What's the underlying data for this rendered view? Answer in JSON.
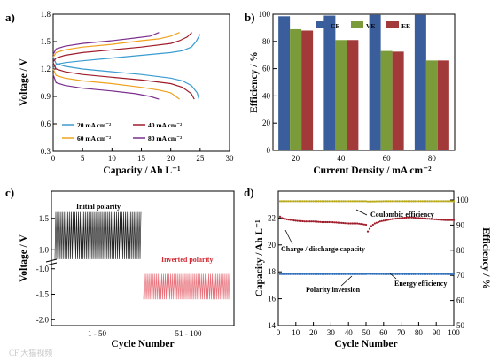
{
  "panels": {
    "a": "a)",
    "b": "b)",
    "c": "c)",
    "d": "d)"
  },
  "watermark": "CF 大猫视频",
  "colors": {
    "blue": "#3a5e9c",
    "green": "#7b9b3a",
    "red": "#a23a3a",
    "teal": "#3a9bd1",
    "darkred": "#a01c2a",
    "orange": "#f0a21c",
    "purple": "#7b2f8e",
    "pos": "#222222",
    "neg": "#e8707a",
    "ce": "#b9aa1c",
    "cap": "#a01c2a",
    "ee": "#2f6fba"
  },
  "chart_data": [
    {
      "id": "a",
      "type": "line",
      "xlabel": "Capacity / Ah L⁻¹",
      "ylabel": "Voltage / V",
      "xlim": [
        0,
        30
      ],
      "ylim": [
        0.3,
        1.8
      ],
      "xticks": [
        0,
        5,
        10,
        15,
        20,
        25,
        30
      ],
      "yticks": [
        0.3,
        0.6,
        0.9,
        1.2,
        1.5,
        1.8
      ],
      "legend_position": "bottom",
      "series": [
        {
          "name": "20 mA cm⁻²",
          "color": "#3a9bd1",
          "charge": {
            "x": [
              0,
              0.5,
              2,
              5,
              10,
              15,
              20,
              22,
              23.5,
              24.3,
              25.0
            ],
            "y": [
              1.21,
              1.25,
              1.27,
              1.29,
              1.32,
              1.35,
              1.38,
              1.4,
              1.44,
              1.5,
              1.58
            ]
          },
          "discharge": {
            "x": [
              0,
              0.5,
              2,
              5,
              10,
              15,
              20,
              22,
              23.5,
              24.5,
              24.8
            ],
            "y": [
              1.33,
              1.26,
              1.23,
              1.2,
              1.17,
              1.14,
              1.1,
              1.07,
              1.02,
              0.94,
              0.87
            ]
          }
        },
        {
          "name": "40 mA cm⁻²",
          "color": "#a01c2a",
          "charge": {
            "x": [
              0,
              0.5,
              2,
              5,
              10,
              15,
              20,
              21.5,
              22.8,
              23.6
            ],
            "y": [
              1.28,
              1.32,
              1.35,
              1.38,
              1.41,
              1.44,
              1.48,
              1.51,
              1.55,
              1.6
            ]
          },
          "discharge": {
            "x": [
              0,
              0.5,
              2,
              5,
              10,
              15,
              20,
              22,
              23.5,
              24.0
            ],
            "y": [
              1.27,
              1.2,
              1.17,
              1.14,
              1.11,
              1.08,
              1.04,
              1.0,
              0.93,
              0.87
            ]
          }
        },
        {
          "name": "60 mA cm⁻²",
          "color": "#f0a21c",
          "charge": {
            "x": [
              0,
              0.5,
              2,
              5,
              10,
              15,
              18,
              20,
              21.5
            ],
            "y": [
              1.33,
              1.38,
              1.41,
              1.44,
              1.47,
              1.51,
              1.53,
              1.56,
              1.6
            ]
          },
          "discharge": {
            "x": [
              0,
              0.5,
              2,
              5,
              10,
              15,
              18,
              20,
              21.5
            ],
            "y": [
              1.2,
              1.13,
              1.1,
              1.07,
              1.04,
              1.0,
              0.97,
              0.94,
              0.87
            ]
          }
        },
        {
          "name": "80 mA cm⁻²",
          "color": "#7b2f8e",
          "charge": {
            "x": [
              0,
              0.5,
              2,
              5,
              10,
              14,
              16.5,
              18.0
            ],
            "y": [
              1.36,
              1.42,
              1.45,
              1.48,
              1.51,
              1.54,
              1.56,
              1.6
            ]
          },
          "discharge": {
            "x": [
              0,
              0.5,
              2,
              5,
              10,
              14,
              16.5,
              18.0
            ],
            "y": [
              1.14,
              1.05,
              1.02,
              0.99,
              0.96,
              0.93,
              0.9,
              0.87
            ]
          }
        }
      ]
    },
    {
      "id": "b",
      "type": "bar",
      "xlabel": "Current Density / mA cm⁻²",
      "ylabel": "Efficiency / %",
      "categories": [
        "20",
        "40",
        "60",
        "80"
      ],
      "ylim": [
        0,
        100
      ],
      "yticks": [
        0,
        20,
        40,
        60,
        80,
        100
      ],
      "legend_position": "top",
      "series": [
        {
          "name": "CE",
          "color": "#3a5e9c",
          "values": [
            98.5,
            99,
            99.5,
            99.5
          ]
        },
        {
          "name": "VE",
          "color": "#7b9b3a",
          "values": [
            89,
            81,
            73,
            66
          ]
        },
        {
          "name": "EE",
          "color": "#a23a3a",
          "values": [
            88,
            81,
            72.5,
            66
          ]
        }
      ]
    },
    {
      "id": "c",
      "type": "line",
      "xlabel": "Cycle Number",
      "ylabel": "Voltage / V",
      "categories": [
        "1 - 50",
        "51 - 100"
      ],
      "yticks": [
        "1.5",
        "1.0",
        "-1.0",
        "-1.5",
        "-2.0"
      ],
      "annotations": [
        "Initial polarity",
        "Inverted polarity"
      ],
      "series": [
        {
          "name": "Initial polarity",
          "color": "#222222",
          "cycles": 50,
          "v_high": 1.6,
          "v_low": 0.85
        },
        {
          "name": "Inverted polarity",
          "color": "#e8707a",
          "cycles": 50,
          "v_high": -1.1,
          "v_low": -1.6
        }
      ]
    },
    {
      "id": "d",
      "type": "scatter",
      "xlabel": "Cycle Number",
      "ylabel_left": "Capacity / Ah L⁻¹",
      "ylabel_right": "Efficiency / %",
      "xlim": [
        0,
        100
      ],
      "ylim_left": [
        14,
        24
      ],
      "ylim_right": [
        50,
        100
      ],
      "xticks": [
        0,
        10,
        20,
        30,
        40,
        50,
        60,
        70,
        80,
        90,
        100
      ],
      "yticks_left": [
        14,
        16,
        18,
        20,
        22
      ],
      "yticks_right": [
        50,
        60,
        70,
        80,
        90,
        100
      ],
      "annotations": [
        "Coulombic efficiency",
        "Charge / discharge capacity",
        "Polarity inversion",
        "Energy efficiency"
      ],
      "series": [
        {
          "name": "Coulombic efficiency",
          "axis": "right",
          "color": "#b9aa1c",
          "x": [
            1,
            10,
            20,
            30,
            40,
            50,
            51,
            60,
            70,
            80,
            90,
            100
          ],
          "y": [
            99.5,
            99.5,
            99.5,
            99.5,
            99.5,
            99.5,
            99.4,
            99.5,
            99.5,
            99.5,
            99.5,
            99.5
          ]
        },
        {
          "name": "Charge / discharge capacity",
          "axis": "left",
          "color": "#a01c2a",
          "x": [
            1,
            2,
            5,
            10,
            15,
            20,
            25,
            30,
            35,
            40,
            45,
            50,
            51,
            52,
            53,
            55,
            58,
            62,
            66,
            70,
            75,
            80,
            85,
            90,
            95,
            100
          ],
          "y": [
            22.1,
            22.0,
            21.9,
            21.8,
            21.75,
            21.75,
            21.7,
            21.7,
            21.65,
            21.6,
            21.6,
            21.5,
            21.0,
            21.2,
            21.4,
            21.6,
            21.75,
            21.85,
            21.95,
            22.0,
            22.05,
            22.0,
            21.95,
            21.9,
            21.85,
            21.85
          ]
        },
        {
          "name": "Energy efficiency",
          "axis": "right",
          "color": "#2f6fba",
          "x": [
            1,
            10,
            20,
            30,
            40,
            50,
            51,
            60,
            70,
            80,
            90,
            100
          ],
          "y": [
            70.5,
            70.5,
            70.5,
            70.5,
            70.5,
            70.5,
            70.6,
            70.5,
            70.5,
            70.5,
            70.5,
            70.5
          ]
        }
      ]
    }
  ]
}
